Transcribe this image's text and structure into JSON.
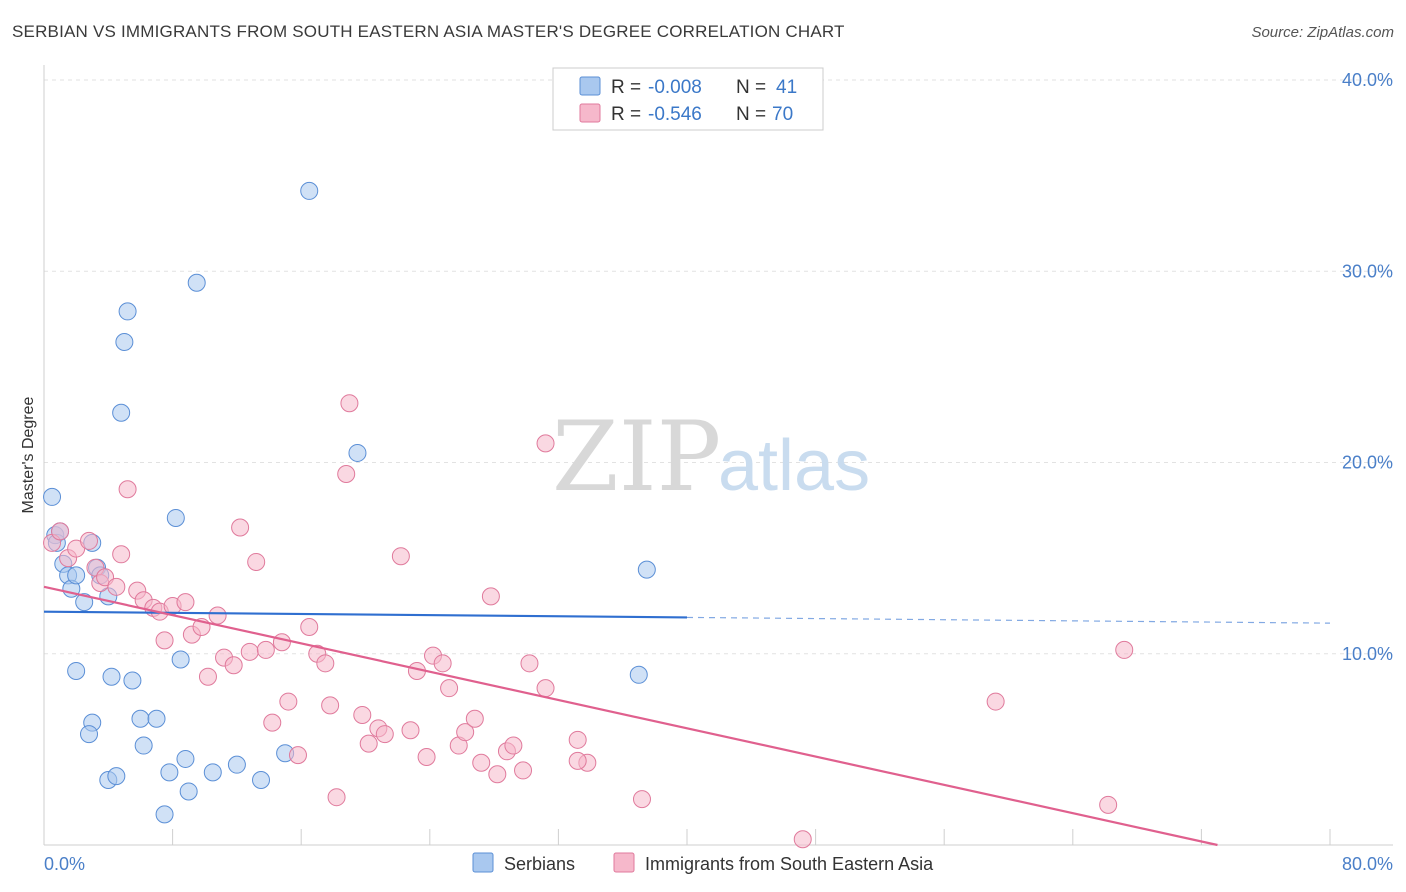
{
  "title": "SERBIAN VS IMMIGRANTS FROM SOUTH EASTERN ASIA MASTER'S DEGREE CORRELATION CHART",
  "source": "Source: ZipAtlas.com",
  "watermark": {
    "zip": "ZIP",
    "atlas": "atlas"
  },
  "legend": {
    "r_label": "R =",
    "n_label": "N =",
    "rows": [
      {
        "r": "-0.008",
        "n": "41",
        "color": "#a9c8ef",
        "stroke": "#5b8fd6"
      },
      {
        "r": "-0.546",
        "n": "70",
        "color": "#f6b8cb",
        "stroke": "#e07a9c"
      }
    ]
  },
  "bottom_legend": [
    "Serbians",
    "Immigrants from South Eastern Asia"
  ],
  "chart_data": {
    "type": "scatter",
    "ylabel": "Master's Degree",
    "xlim": [
      0,
      80
    ],
    "ylim": [
      0,
      40
    ],
    "x_tick_labels": {
      "left": "0.0%",
      "right": "80.0%"
    },
    "y_ticks": [
      {
        "value": 10,
        "label": "10.0%"
      },
      {
        "value": 20,
        "label": "20.0%"
      },
      {
        "value": 30,
        "label": "30.0%"
      },
      {
        "value": 40,
        "label": "40.0%"
      }
    ],
    "grid": true,
    "series": [
      {
        "name": "Serbians",
        "color": "#a9c8ef",
        "stroke": "#5b8fd6",
        "line_color": "#2f6fd0",
        "trend": {
          "x0": 0,
          "y0": 12.2,
          "x1": 40,
          "y1": 11.9,
          "x_end": 80,
          "y_end": 11.6
        },
        "points": [
          [
            0.5,
            18.2
          ],
          [
            0.7,
            16.2
          ],
          [
            0.8,
            15.8
          ],
          [
            1.0,
            16.4
          ],
          [
            1.2,
            14.7
          ],
          [
            1.5,
            14.1
          ],
          [
            1.7,
            13.4
          ],
          [
            2.0,
            14.1
          ],
          [
            2.5,
            12.7
          ],
          [
            3.0,
            15.8
          ],
          [
            3.3,
            14.5
          ],
          [
            3.5,
            14.1
          ],
          [
            4.0,
            13.0
          ],
          [
            4.2,
            8.8
          ],
          [
            5.0,
            26.3
          ],
          [
            5.2,
            27.9
          ],
          [
            4.8,
            22.6
          ],
          [
            5.5,
            8.6
          ],
          [
            6.0,
            6.6
          ],
          [
            6.2,
            5.2
          ],
          [
            7.0,
            6.6
          ],
          [
            7.5,
            1.6
          ],
          [
            7.8,
            3.8
          ],
          [
            8.2,
            17.1
          ],
          [
            8.5,
            9.7
          ],
          [
            8.8,
            4.5
          ],
          [
            9.0,
            2.8
          ],
          [
            9.5,
            29.4
          ],
          [
            10.5,
            3.8
          ],
          [
            12.0,
            4.2
          ],
          [
            13.5,
            3.4
          ],
          [
            15.0,
            4.8
          ],
          [
            16.5,
            34.2
          ],
          [
            19.5,
            20.5
          ],
          [
            2.0,
            9.1
          ],
          [
            3.0,
            6.4
          ],
          [
            2.8,
            5.8
          ],
          [
            4.0,
            3.4
          ],
          [
            4.5,
            3.6
          ],
          [
            37.5,
            14.4
          ],
          [
            37.0,
            8.9
          ]
        ]
      },
      {
        "name": "Immigrants from South Eastern Asia",
        "color": "#f6b8cb",
        "stroke": "#e07a9c",
        "line_color": "#e0608e",
        "trend": {
          "x0": 0,
          "y0": 13.5,
          "x1": 73,
          "y1": 0
        },
        "points": [
          [
            0.5,
            15.8
          ],
          [
            1.0,
            16.4
          ],
          [
            1.5,
            15.0
          ],
          [
            2.0,
            15.5
          ],
          [
            2.8,
            15.9
          ],
          [
            3.2,
            14.5
          ],
          [
            3.5,
            13.7
          ],
          [
            3.8,
            14.0
          ],
          [
            4.5,
            13.5
          ],
          [
            4.8,
            15.2
          ],
          [
            5.2,
            18.6
          ],
          [
            5.8,
            13.3
          ],
          [
            6.2,
            12.8
          ],
          [
            6.8,
            12.4
          ],
          [
            7.2,
            12.2
          ],
          [
            7.5,
            10.7
          ],
          [
            8.0,
            12.5
          ],
          [
            8.8,
            12.7
          ],
          [
            9.2,
            11.0
          ],
          [
            9.8,
            11.4
          ],
          [
            10.2,
            8.8
          ],
          [
            10.8,
            12.0
          ],
          [
            11.2,
            9.8
          ],
          [
            11.8,
            9.4
          ],
          [
            12.2,
            16.6
          ],
          [
            12.8,
            10.1
          ],
          [
            13.2,
            14.8
          ],
          [
            13.8,
            10.2
          ],
          [
            14.2,
            6.4
          ],
          [
            14.8,
            10.6
          ],
          [
            15.2,
            7.5
          ],
          [
            15.8,
            4.7
          ],
          [
            16.5,
            11.4
          ],
          [
            17.0,
            10.0
          ],
          [
            17.5,
            9.5
          ],
          [
            17.8,
            7.3
          ],
          [
            18.2,
            2.5
          ],
          [
            18.8,
            19.4
          ],
          [
            19.0,
            23.1
          ],
          [
            19.8,
            6.8
          ],
          [
            20.2,
            5.3
          ],
          [
            20.8,
            6.1
          ],
          [
            21.2,
            5.8
          ],
          [
            22.2,
            15.1
          ],
          [
            22.8,
            6.0
          ],
          [
            23.2,
            9.1
          ],
          [
            23.8,
            4.6
          ],
          [
            24.2,
            9.9
          ],
          [
            24.8,
            9.5
          ],
          [
            25.2,
            8.2
          ],
          [
            25.8,
            5.2
          ],
          [
            26.2,
            5.9
          ],
          [
            26.8,
            6.6
          ],
          [
            27.2,
            4.3
          ],
          [
            27.8,
            13.0
          ],
          [
            28.2,
            3.7
          ],
          [
            28.8,
            4.9
          ],
          [
            29.2,
            5.2
          ],
          [
            29.8,
            3.9
          ],
          [
            30.2,
            9.5
          ],
          [
            31.2,
            21.0
          ],
          [
            31.2,
            8.2
          ],
          [
            33.2,
            5.5
          ],
          [
            33.8,
            4.3
          ],
          [
            33.2,
            4.4
          ],
          [
            37.2,
            2.4
          ],
          [
            47.2,
            0.3
          ],
          [
            59.2,
            7.5
          ],
          [
            66.2,
            2.1
          ],
          [
            67.2,
            10.2
          ]
        ]
      }
    ]
  }
}
